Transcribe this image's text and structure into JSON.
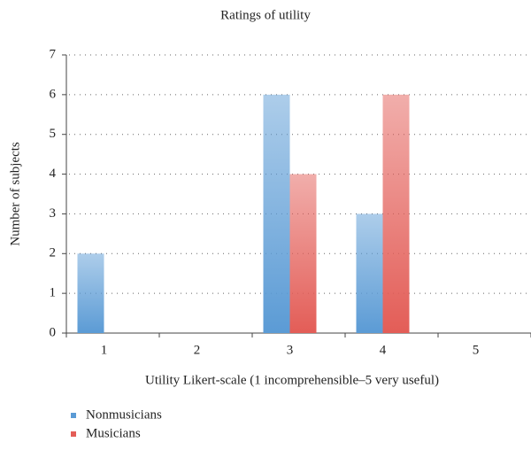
{
  "chart_data": {
    "type": "bar",
    "title": "Ratings of utility",
    "x_label": "Utility Likert-scale (1 incomprehensible–5 very useful)",
    "y_label": "Number of subjects",
    "categories": [
      "1",
      "2",
      "3",
      "4",
      "5"
    ],
    "series": [
      {
        "name": "Nonmusicians",
        "color": "#5b9bd5",
        "values": [
          2,
          0,
          6,
          3,
          0
        ]
      },
      {
        "name": "Musicians",
        "color": "#e35d57",
        "values": [
          0,
          0,
          4,
          6,
          0
        ]
      }
    ],
    "ylim": [
      0,
      7
    ],
    "yticks": [
      0,
      1,
      2,
      3,
      4,
      5,
      6,
      7
    ],
    "grid": true,
    "legend": "bottom-left"
  }
}
